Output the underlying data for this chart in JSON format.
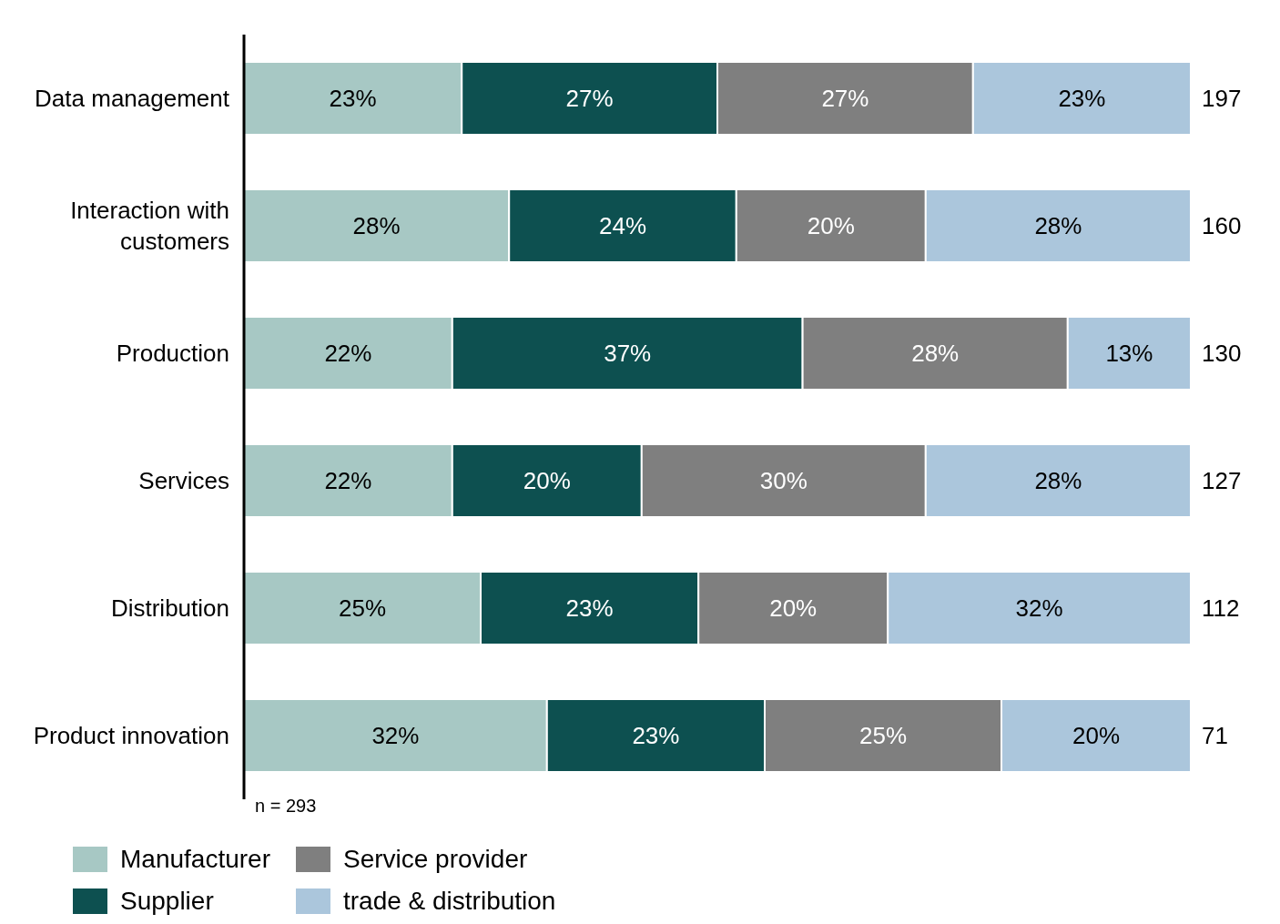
{
  "chart_data": {
    "type": "bar",
    "orientation": "horizontal",
    "stacked": true,
    "categories": [
      "Data management",
      "Interaction with customers",
      "Production",
      "Services",
      "Distribution",
      "Product innovation"
    ],
    "series": [
      {
        "name": "Manufacturer",
        "color": "#a7c8c4",
        "values": [
          23,
          28,
          22,
          22,
          25,
          32
        ],
        "value_labels": [
          "23%",
          "28%",
          "22%",
          "22%",
          "25%",
          "32%"
        ]
      },
      {
        "name": "Supplier",
        "color": "#0d5050",
        "values": [
          27,
          24,
          37,
          20,
          23,
          23
        ],
        "value_labels": [
          "27%",
          "24%",
          "37%",
          "20%",
          "23%",
          "23%"
        ]
      },
      {
        "name": "Service provider",
        "color": "#7f7f7f",
        "values": [
          27,
          20,
          28,
          30,
          20,
          25
        ],
        "value_labels": [
          "27%",
          "20%",
          "28%",
          "30%",
          "20%",
          "25%"
        ]
      },
      {
        "name": "trade & distribution",
        "color": "#abc6dc",
        "values": [
          23,
          28,
          13,
          28,
          32,
          20
        ],
        "value_labels": [
          "23%",
          "28%",
          "13%",
          "28%",
          "32%",
          "20%"
        ]
      }
    ],
    "tick_labels": "y",
    "legend": "bottom left",
    "annotations": [
      "197",
      "160",
      "130",
      "127",
      "112",
      "71",
      "n = 293"
    ]
  }
}
